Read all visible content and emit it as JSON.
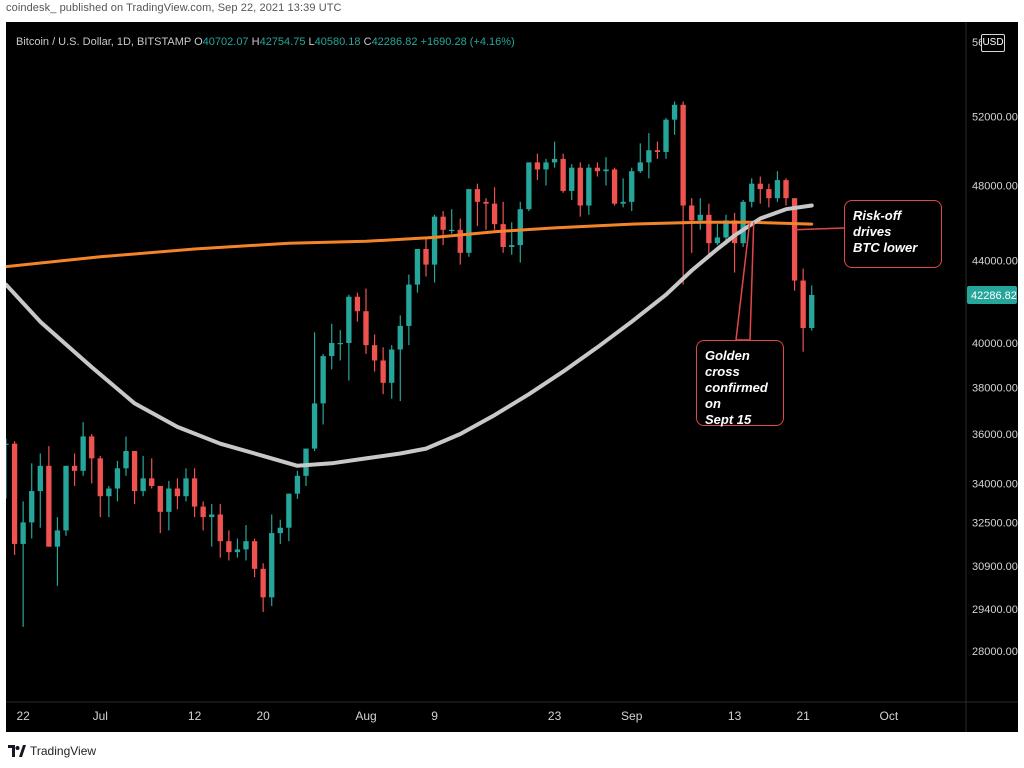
{
  "published": "coindesk_ published on TradingView.com, Sep 22, 2021 13:39 UTC",
  "legend": {
    "symbol": "Bitcoin / U.S. Dollar, 1D, BITSTAMP",
    "o_label": "O",
    "o_value": "40702.07",
    "h_label": "H",
    "h_value": "42754.75",
    "l_label": "L",
    "l_value": "40580.18",
    "c_label": "C",
    "c_value": "42286.82",
    "change": "+1690.28 (+4.16%)"
  },
  "currency_button": "USD",
  "footer": {
    "brand": "TradingView"
  },
  "colors": {
    "up": "#26a69a",
    "down": "#ef5350",
    "ma_fast": "#c8c8c8",
    "ma_slow": "#f4842a",
    "price_tag": "#26a69a",
    "annotation_border": "#e04848"
  },
  "chart_data": {
    "type": "candlestick",
    "axis": {
      "y_ticks": [
        52000,
        48000,
        44000,
        40000,
        38000,
        36000,
        34000,
        32500,
        30900,
        29400,
        28000
      ],
      "y_tick_labels": [
        "52000.00",
        "48000.00",
        "44000.00",
        "40000.00",
        "38000.00",
        "36000.00",
        "34000.00",
        "32500.00",
        "30900.00",
        "29400.00",
        "28000.00"
      ],
      "y_top_label_partial": "56",
      "y_scale": "log",
      "y_range": [
        26400,
        58000
      ],
      "x_ticks": [
        {
          "label": "22",
          "date": "2021-06-22"
        },
        {
          "label": "Jul",
          "date": "2021-07-01"
        },
        {
          "label": "12",
          "date": "2021-07-12"
        },
        {
          "label": "20",
          "date": "2021-07-20"
        },
        {
          "label": "Aug",
          "date": "2021-08-01"
        },
        {
          "label": "9",
          "date": "2021-08-09"
        },
        {
          "label": "23",
          "date": "2021-08-23"
        },
        {
          "label": "Sep",
          "date": "2021-09-01"
        },
        {
          "label": "13",
          "date": "2021-09-13"
        },
        {
          "label": "21",
          "date": "2021-09-21"
        },
        {
          "label": "Oct",
          "date": "2021-10-01"
        }
      ],
      "x_range": [
        "2021-06-20",
        "2021-10-10"
      ]
    },
    "last_price": {
      "value": 42286.82,
      "label": "42286.82"
    },
    "candles": [
      {
        "date": "2021-06-20",
        "o": 35600,
        "h": 35800,
        "l": 33400,
        "c": 35600
      },
      {
        "date": "2021-06-21",
        "o": 35600,
        "h": 35700,
        "l": 31300,
        "c": 31700
      },
      {
        "date": "2021-06-22",
        "o": 31700,
        "h": 33300,
        "l": 28800,
        "c": 32500
      },
      {
        "date": "2021-06-23",
        "o": 32500,
        "h": 34800,
        "l": 31900,
        "c": 33700
      },
      {
        "date": "2021-06-24",
        "o": 33700,
        "h": 35200,
        "l": 32300,
        "c": 34700
      },
      {
        "date": "2021-06-25",
        "o": 34700,
        "h": 35500,
        "l": 31600,
        "c": 31600
      },
      {
        "date": "2021-06-26",
        "o": 31600,
        "h": 32700,
        "l": 30200,
        "c": 32200
      },
      {
        "date": "2021-06-27",
        "o": 32200,
        "h": 34700,
        "l": 32000,
        "c": 34700
      },
      {
        "date": "2021-06-28",
        "o": 34700,
        "h": 35200,
        "l": 33900,
        "c": 34500
      },
      {
        "date": "2021-06-29",
        "o": 34500,
        "h": 36500,
        "l": 34300,
        "c": 35900
      },
      {
        "date": "2021-06-30",
        "o": 35900,
        "h": 36000,
        "l": 34000,
        "c": 35000
      },
      {
        "date": "2021-07-01",
        "o": 35000,
        "h": 35100,
        "l": 32700,
        "c": 33500
      },
      {
        "date": "2021-07-02",
        "o": 33500,
        "h": 33900,
        "l": 32700,
        "c": 33800
      },
      {
        "date": "2021-07-03",
        "o": 33800,
        "h": 34900,
        "l": 33300,
        "c": 34600
      },
      {
        "date": "2021-07-04",
        "o": 34600,
        "h": 35900,
        "l": 34300,
        "c": 35300
      },
      {
        "date": "2021-07-05",
        "o": 35300,
        "h": 35300,
        "l": 33200,
        "c": 33700
      },
      {
        "date": "2021-07-06",
        "o": 33700,
        "h": 35100,
        "l": 33500,
        "c": 34200
      },
      {
        "date": "2021-07-07",
        "o": 34200,
        "h": 35000,
        "l": 33800,
        "c": 33900
      },
      {
        "date": "2021-07-08",
        "o": 33900,
        "h": 33900,
        "l": 32100,
        "c": 32900
      },
      {
        "date": "2021-07-09",
        "o": 32900,
        "h": 34100,
        "l": 32200,
        "c": 33800
      },
      {
        "date": "2021-07-10",
        "o": 33800,
        "h": 34200,
        "l": 33000,
        "c": 33500
      },
      {
        "date": "2021-07-11",
        "o": 33500,
        "h": 34600,
        "l": 33300,
        "c": 34200
      },
      {
        "date": "2021-07-12",
        "o": 34200,
        "h": 34600,
        "l": 32700,
        "c": 33100
      },
      {
        "date": "2021-07-13",
        "o": 33100,
        "h": 33300,
        "l": 32200,
        "c": 32700
      },
      {
        "date": "2021-07-14",
        "o": 32700,
        "h": 33200,
        "l": 31600,
        "c": 32800
      },
      {
        "date": "2021-07-15",
        "o": 32800,
        "h": 33200,
        "l": 31200,
        "c": 31800
      },
      {
        "date": "2021-07-16",
        "o": 31800,
        "h": 32200,
        "l": 31100,
        "c": 31400
      },
      {
        "date": "2021-07-17",
        "o": 31400,
        "h": 31900,
        "l": 31200,
        "c": 31500
      },
      {
        "date": "2021-07-18",
        "o": 31500,
        "h": 32400,
        "l": 31100,
        "c": 31800
      },
      {
        "date": "2021-07-19",
        "o": 31800,
        "h": 31900,
        "l": 30500,
        "c": 30800
      },
      {
        "date": "2021-07-20",
        "o": 30800,
        "h": 31000,
        "l": 29300,
        "c": 29800
      },
      {
        "date": "2021-07-21",
        "o": 29800,
        "h": 32800,
        "l": 29500,
        "c": 32100
      },
      {
        "date": "2021-07-22",
        "o": 32100,
        "h": 32600,
        "l": 31700,
        "c": 32300
      },
      {
        "date": "2021-07-23",
        "o": 32300,
        "h": 33600,
        "l": 31800,
        "c": 33600
      },
      {
        "date": "2021-07-24",
        "o": 33600,
        "h": 34500,
        "l": 33400,
        "c": 34300
      },
      {
        "date": "2021-07-25",
        "o": 34300,
        "h": 35400,
        "l": 33900,
        "c": 35400
      },
      {
        "date": "2021-07-26",
        "o": 35400,
        "h": 40500,
        "l": 35300,
        "c": 37300
      },
      {
        "date": "2021-07-27",
        "o": 37300,
        "h": 39500,
        "l": 36400,
        "c": 39400
      },
      {
        "date": "2021-07-28",
        "o": 39400,
        "h": 40900,
        "l": 38800,
        "c": 40000
      },
      {
        "date": "2021-07-29",
        "o": 40000,
        "h": 40600,
        "l": 39200,
        "c": 40000
      },
      {
        "date": "2021-07-30",
        "o": 40000,
        "h": 42300,
        "l": 38300,
        "c": 42200
      },
      {
        "date": "2021-07-31",
        "o": 42200,
        "h": 42400,
        "l": 41000,
        "c": 41500
      },
      {
        "date": "2021-08-01",
        "o": 41500,
        "h": 42600,
        "l": 39500,
        "c": 39900
      },
      {
        "date": "2021-08-02",
        "o": 39900,
        "h": 40400,
        "l": 38700,
        "c": 39200
      },
      {
        "date": "2021-08-03",
        "o": 39200,
        "h": 39800,
        "l": 37700,
        "c": 38200
      },
      {
        "date": "2021-08-04",
        "o": 38200,
        "h": 39900,
        "l": 37500,
        "c": 39700
      },
      {
        "date": "2021-08-05",
        "o": 39700,
        "h": 41300,
        "l": 37400,
        "c": 40800
      },
      {
        "date": "2021-08-06",
        "o": 40800,
        "h": 43300,
        "l": 39900,
        "c": 42800
      },
      {
        "date": "2021-08-07",
        "o": 42800,
        "h": 44600,
        "l": 42400,
        "c": 44600
      },
      {
        "date": "2021-08-08",
        "o": 44600,
        "h": 45200,
        "l": 43200,
        "c": 43800
      },
      {
        "date": "2021-08-09",
        "o": 43800,
        "h": 46400,
        "l": 42900,
        "c": 46300
      },
      {
        "date": "2021-08-10",
        "o": 46300,
        "h": 46600,
        "l": 44800,
        "c": 45600
      },
      {
        "date": "2021-08-11",
        "o": 45600,
        "h": 46700,
        "l": 45400,
        "c": 45600
      },
      {
        "date": "2021-08-12",
        "o": 45600,
        "h": 46200,
        "l": 43800,
        "c": 44400
      },
      {
        "date": "2021-08-13",
        "o": 44400,
        "h": 47800,
        "l": 44200,
        "c": 47800
      },
      {
        "date": "2021-08-14",
        "o": 47800,
        "h": 48100,
        "l": 45800,
        "c": 47100
      },
      {
        "date": "2021-08-15",
        "o": 47100,
        "h": 47300,
        "l": 45600,
        "c": 47000
      },
      {
        "date": "2021-08-16",
        "o": 47000,
        "h": 47900,
        "l": 45600,
        "c": 45900
      },
      {
        "date": "2021-08-17",
        "o": 45900,
        "h": 47100,
        "l": 44400,
        "c": 44700
      },
      {
        "date": "2021-08-18",
        "o": 44700,
        "h": 46000,
        "l": 44300,
        "c": 44800
      },
      {
        "date": "2021-08-19",
        "o": 44800,
        "h": 47100,
        "l": 43900,
        "c": 46700
      },
      {
        "date": "2021-08-20",
        "o": 46700,
        "h": 49300,
        "l": 46600,
        "c": 49300
      },
      {
        "date": "2021-08-21",
        "o": 49300,
        "h": 49800,
        "l": 48300,
        "c": 48900
      },
      {
        "date": "2021-08-22",
        "o": 48900,
        "h": 49500,
        "l": 48000,
        "c": 49300
      },
      {
        "date": "2021-08-23",
        "o": 49300,
        "h": 50500,
        "l": 49000,
        "c": 49500
      },
      {
        "date": "2021-08-24",
        "o": 49500,
        "h": 49800,
        "l": 47600,
        "c": 47700
      },
      {
        "date": "2021-08-25",
        "o": 47700,
        "h": 49200,
        "l": 47200,
        "c": 49000
      },
      {
        "date": "2021-08-26",
        "o": 49000,
        "h": 49300,
        "l": 46300,
        "c": 46900
      },
      {
        "date": "2021-08-27",
        "o": 46900,
        "h": 49200,
        "l": 46400,
        "c": 49000
      },
      {
        "date": "2021-08-28",
        "o": 49000,
        "h": 49300,
        "l": 48500,
        "c": 48800
      },
      {
        "date": "2021-08-29",
        "o": 48800,
        "h": 49600,
        "l": 48000,
        "c": 48900
      },
      {
        "date": "2021-08-30",
        "o": 48900,
        "h": 49000,
        "l": 46900,
        "c": 47000
      },
      {
        "date": "2021-08-31",
        "o": 47000,
        "h": 48400,
        "l": 46800,
        "c": 47100
      },
      {
        "date": "2021-09-01",
        "o": 47100,
        "h": 49000,
        "l": 46600,
        "c": 48800
      },
      {
        "date": "2021-09-02",
        "o": 48800,
        "h": 50400,
        "l": 48700,
        "c": 49300
      },
      {
        "date": "2021-09-03",
        "o": 49300,
        "h": 51000,
        "l": 48400,
        "c": 50000
      },
      {
        "date": "2021-09-04",
        "o": 50000,
        "h": 50500,
        "l": 49500,
        "c": 49900
      },
      {
        "date": "2021-09-05",
        "o": 49900,
        "h": 51900,
        "l": 49500,
        "c": 51800
      },
      {
        "date": "2021-09-06",
        "o": 51800,
        "h": 52900,
        "l": 50900,
        "c": 52700
      },
      {
        "date": "2021-09-07",
        "o": 52700,
        "h": 52900,
        "l": 42800,
        "c": 46900
      },
      {
        "date": "2021-09-08",
        "o": 46900,
        "h": 47300,
        "l": 44400,
        "c": 46100
      },
      {
        "date": "2021-09-09",
        "o": 46100,
        "h": 47300,
        "l": 45600,
        "c": 46400
      },
      {
        "date": "2021-09-10",
        "o": 46400,
        "h": 47000,
        "l": 44200,
        "c": 44900
      },
      {
        "date": "2021-09-11",
        "o": 44900,
        "h": 45900,
        "l": 44800,
        "c": 45200
      },
      {
        "date": "2021-09-12",
        "o": 45200,
        "h": 46400,
        "l": 44800,
        "c": 46100
      },
      {
        "date": "2021-09-13",
        "o": 46100,
        "h": 46500,
        "l": 43400,
        "c": 44900
      },
      {
        "date": "2021-09-14",
        "o": 44900,
        "h": 47200,
        "l": 44700,
        "c": 47100
      },
      {
        "date": "2021-09-15",
        "o": 47100,
        "h": 48400,
        "l": 46800,
        "c": 48100
      },
      {
        "date": "2021-09-16",
        "o": 48100,
        "h": 48500,
        "l": 47000,
        "c": 47800
      },
      {
        "date": "2021-09-17",
        "o": 47800,
        "h": 48100,
        "l": 46800,
        "c": 47300
      },
      {
        "date": "2021-09-18",
        "o": 47300,
        "h": 48800,
        "l": 47100,
        "c": 48300
      },
      {
        "date": "2021-09-19",
        "o": 48300,
        "h": 48400,
        "l": 46900,
        "c": 47300
      },
      {
        "date": "2021-09-20",
        "o": 47300,
        "h": 47300,
        "l": 42500,
        "c": 43000
      },
      {
        "date": "2021-09-21",
        "o": 43000,
        "h": 43600,
        "l": 39600,
        "c": 40700
      },
      {
        "date": "2021-09-22",
        "o": 40702.07,
        "h": 42754.75,
        "l": 40580.18,
        "c": 42286.82
      }
    ],
    "ma_fast": [
      [
        "2021-06-20",
        42800
      ],
      [
        "2021-06-24",
        41000
      ],
      [
        "2021-06-30",
        38900
      ],
      [
        "2021-07-05",
        37300
      ],
      [
        "2021-07-10",
        36300
      ],
      [
        "2021-07-15",
        35600
      ],
      [
        "2021-07-20",
        35100
      ],
      [
        "2021-07-24",
        34700
      ],
      [
        "2021-07-28",
        34800
      ],
      [
        "2021-08-01",
        35000
      ],
      [
        "2021-08-05",
        35200
      ],
      [
        "2021-08-08",
        35400
      ],
      [
        "2021-08-12",
        36000
      ],
      [
        "2021-08-16",
        36800
      ],
      [
        "2021-08-20",
        37700
      ],
      [
        "2021-08-24",
        38700
      ],
      [
        "2021-08-28",
        39800
      ],
      [
        "2021-09-01",
        41000
      ],
      [
        "2021-09-05",
        42300
      ],
      [
        "2021-09-08",
        43500
      ],
      [
        "2021-09-11",
        44600
      ],
      [
        "2021-09-13",
        45300
      ],
      [
        "2021-09-16",
        46200
      ],
      [
        "2021-09-19",
        46700
      ],
      [
        "2021-09-22",
        46900
      ]
    ],
    "ma_slow": [
      [
        "2021-06-20",
        43700
      ],
      [
        "2021-07-01",
        44200
      ],
      [
        "2021-07-12",
        44600
      ],
      [
        "2021-07-23",
        44900
      ],
      [
        "2021-08-01",
        45000
      ],
      [
        "2021-08-09",
        45200
      ],
      [
        "2021-08-16",
        45500
      ],
      [
        "2021-08-23",
        45700
      ],
      [
        "2021-09-01",
        45900
      ],
      [
        "2021-09-09",
        46000
      ],
      [
        "2021-09-15",
        46000
      ],
      [
        "2021-09-22",
        45900
      ]
    ],
    "annotations": [
      {
        "text": "Risk-off drives BTC lower",
        "line1": "Risk-off drives",
        "line2": "BTC lower",
        "target_date": "2021-09-20",
        "target_value": 45600
      },
      {
        "text": "Golden cross confirmed on Sept 15",
        "line1": "Golden cross",
        "line2": "confirmed on",
        "line3": "Sept 15",
        "target_date": "2021-09-15",
        "target_value": 46000
      }
    ]
  }
}
